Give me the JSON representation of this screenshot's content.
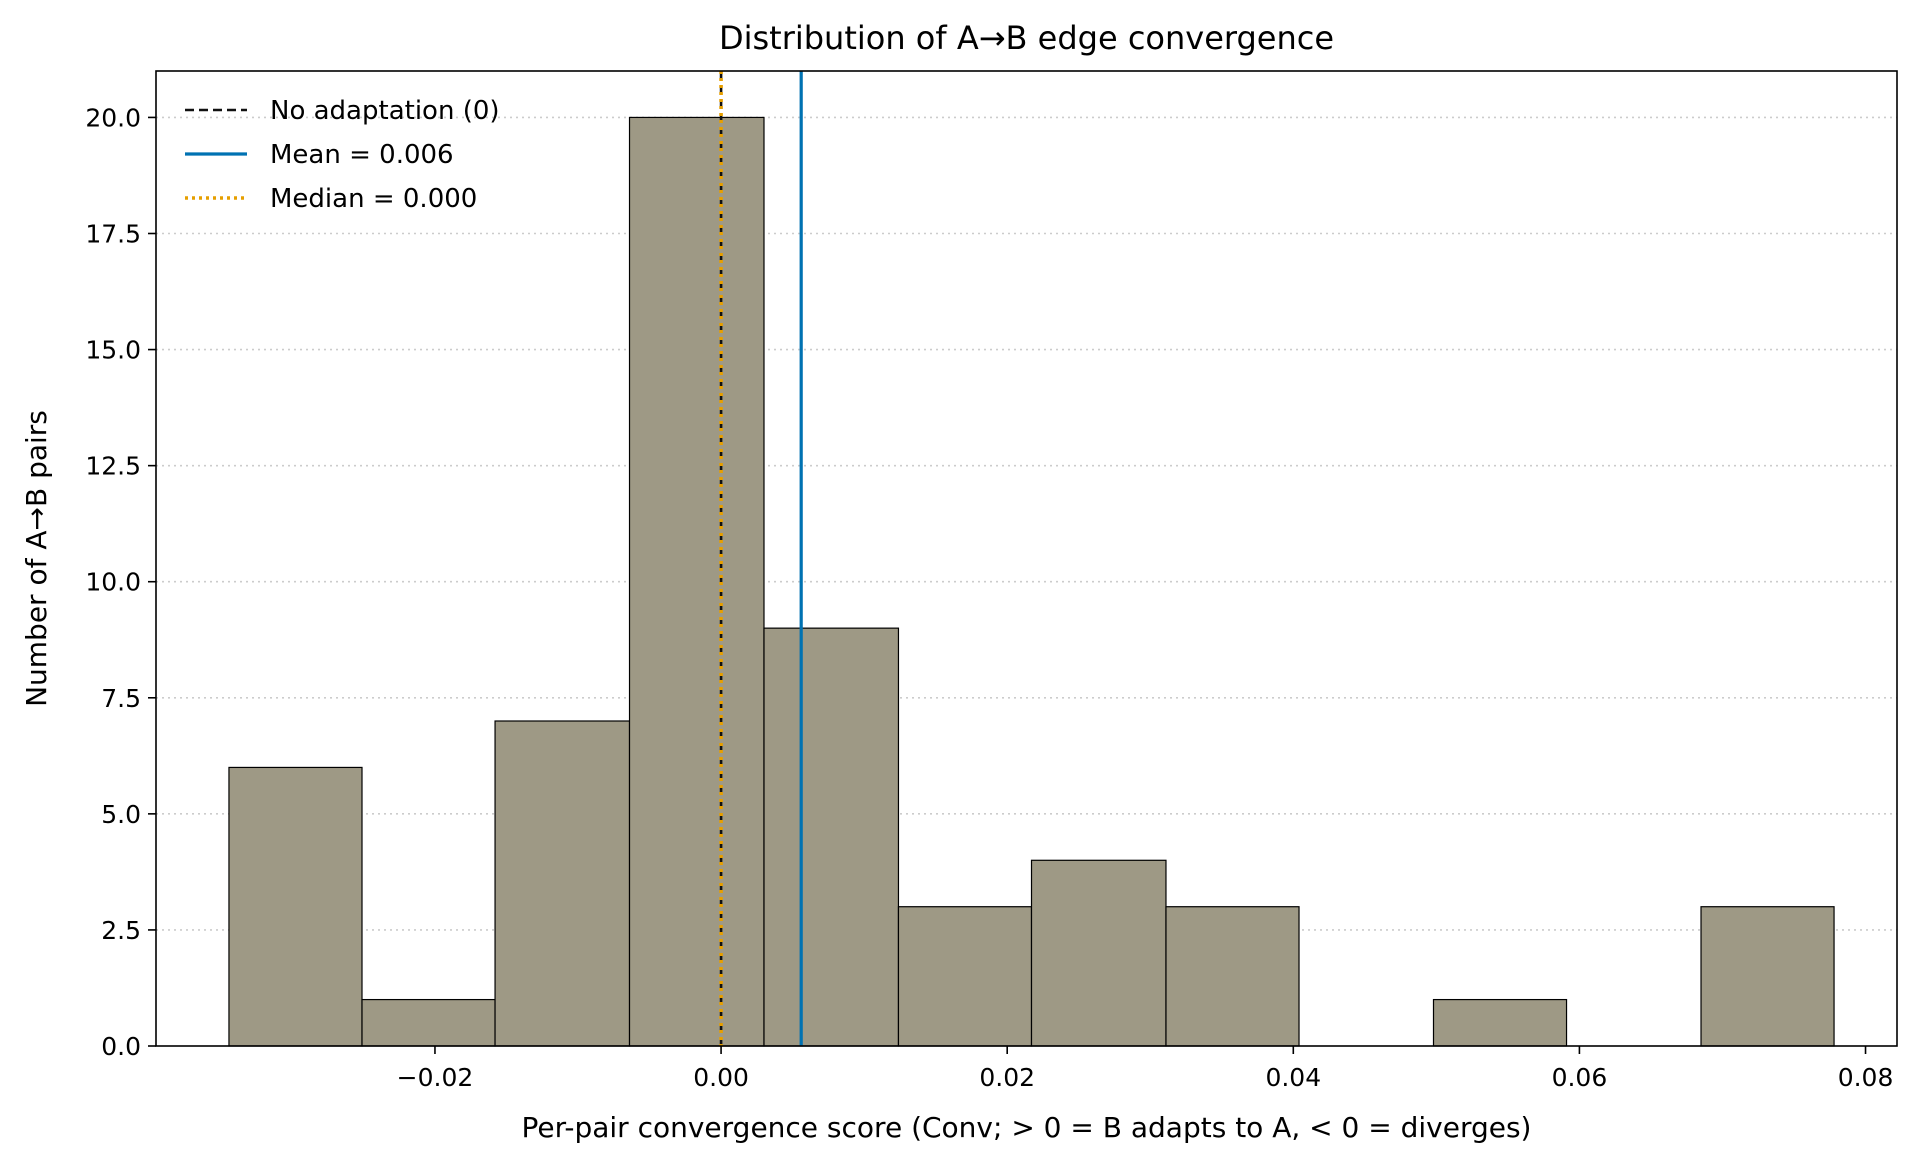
{
  "chart_data": {
    "type": "bar",
    "title": "Distribution of A→B edge convergence",
    "xlabel": "Per-pair convergence score (Conv; > 0 = B adapts to A, < 0 = diverges)",
    "ylabel": "Number of A→B pairs",
    "xlim": [
      -0.0395,
      0.0822
    ],
    "ylim": [
      0,
      21
    ],
    "x_ticks": [
      -0.02,
      0.0,
      0.02,
      0.04,
      0.06,
      0.08
    ],
    "x_tick_labels": [
      "−0.02",
      "0.00",
      "0.02",
      "0.04",
      "0.06",
      "0.08"
    ],
    "y_ticks": [
      0,
      2.5,
      5,
      7.5,
      10,
      12.5,
      15,
      17.5,
      20
    ],
    "y_tick_labels": [
      "0.0",
      "2.5",
      "5.0",
      "7.5",
      "10.0",
      "12.5",
      "15.0",
      "17.5",
      "20.0"
    ],
    "grid": "horizontal dotted",
    "legend_placement": "top-left",
    "bins": [
      {
        "x0": -0.0344,
        "x1": -0.0251,
        "count": 6
      },
      {
        "x0": -0.0251,
        "x1": -0.0158,
        "count": 1
      },
      {
        "x0": -0.0158,
        "x1": -0.0064,
        "count": 7
      },
      {
        "x0": -0.0064,
        "x1": 0.003,
        "count": 20
      },
      {
        "x0": 0.003,
        "x1": 0.0124,
        "count": 9
      },
      {
        "x0": 0.0124,
        "x1": 0.0217,
        "count": 3
      },
      {
        "x0": 0.0217,
        "x1": 0.0311,
        "count": 4
      },
      {
        "x0": 0.0311,
        "x1": 0.0404,
        "count": 3
      },
      {
        "x0": 0.0404,
        "x1": 0.0498,
        "count": 0
      },
      {
        "x0": 0.0498,
        "x1": 0.0591,
        "count": 1
      },
      {
        "x0": 0.0591,
        "x1": 0.0685,
        "count": 0
      },
      {
        "x0": 0.0685,
        "x1": 0.0778,
        "count": 3
      }
    ],
    "reference_lines": [
      {
        "name": "No adaptation (0)",
        "x": 0.0,
        "style": "dashed",
        "color": "#111111"
      },
      {
        "name": "Mean = 0.006",
        "x": 0.0056,
        "style": "solid",
        "color": "#0072b2"
      },
      {
        "name": "Median = 0.000",
        "x": 0.0,
        "style": "dotted",
        "color": "#e69f00"
      }
    ],
    "colors": {
      "bar_fill": "#9e9985",
      "bar_edge": "#000000",
      "grid": "#cccccc"
    }
  }
}
